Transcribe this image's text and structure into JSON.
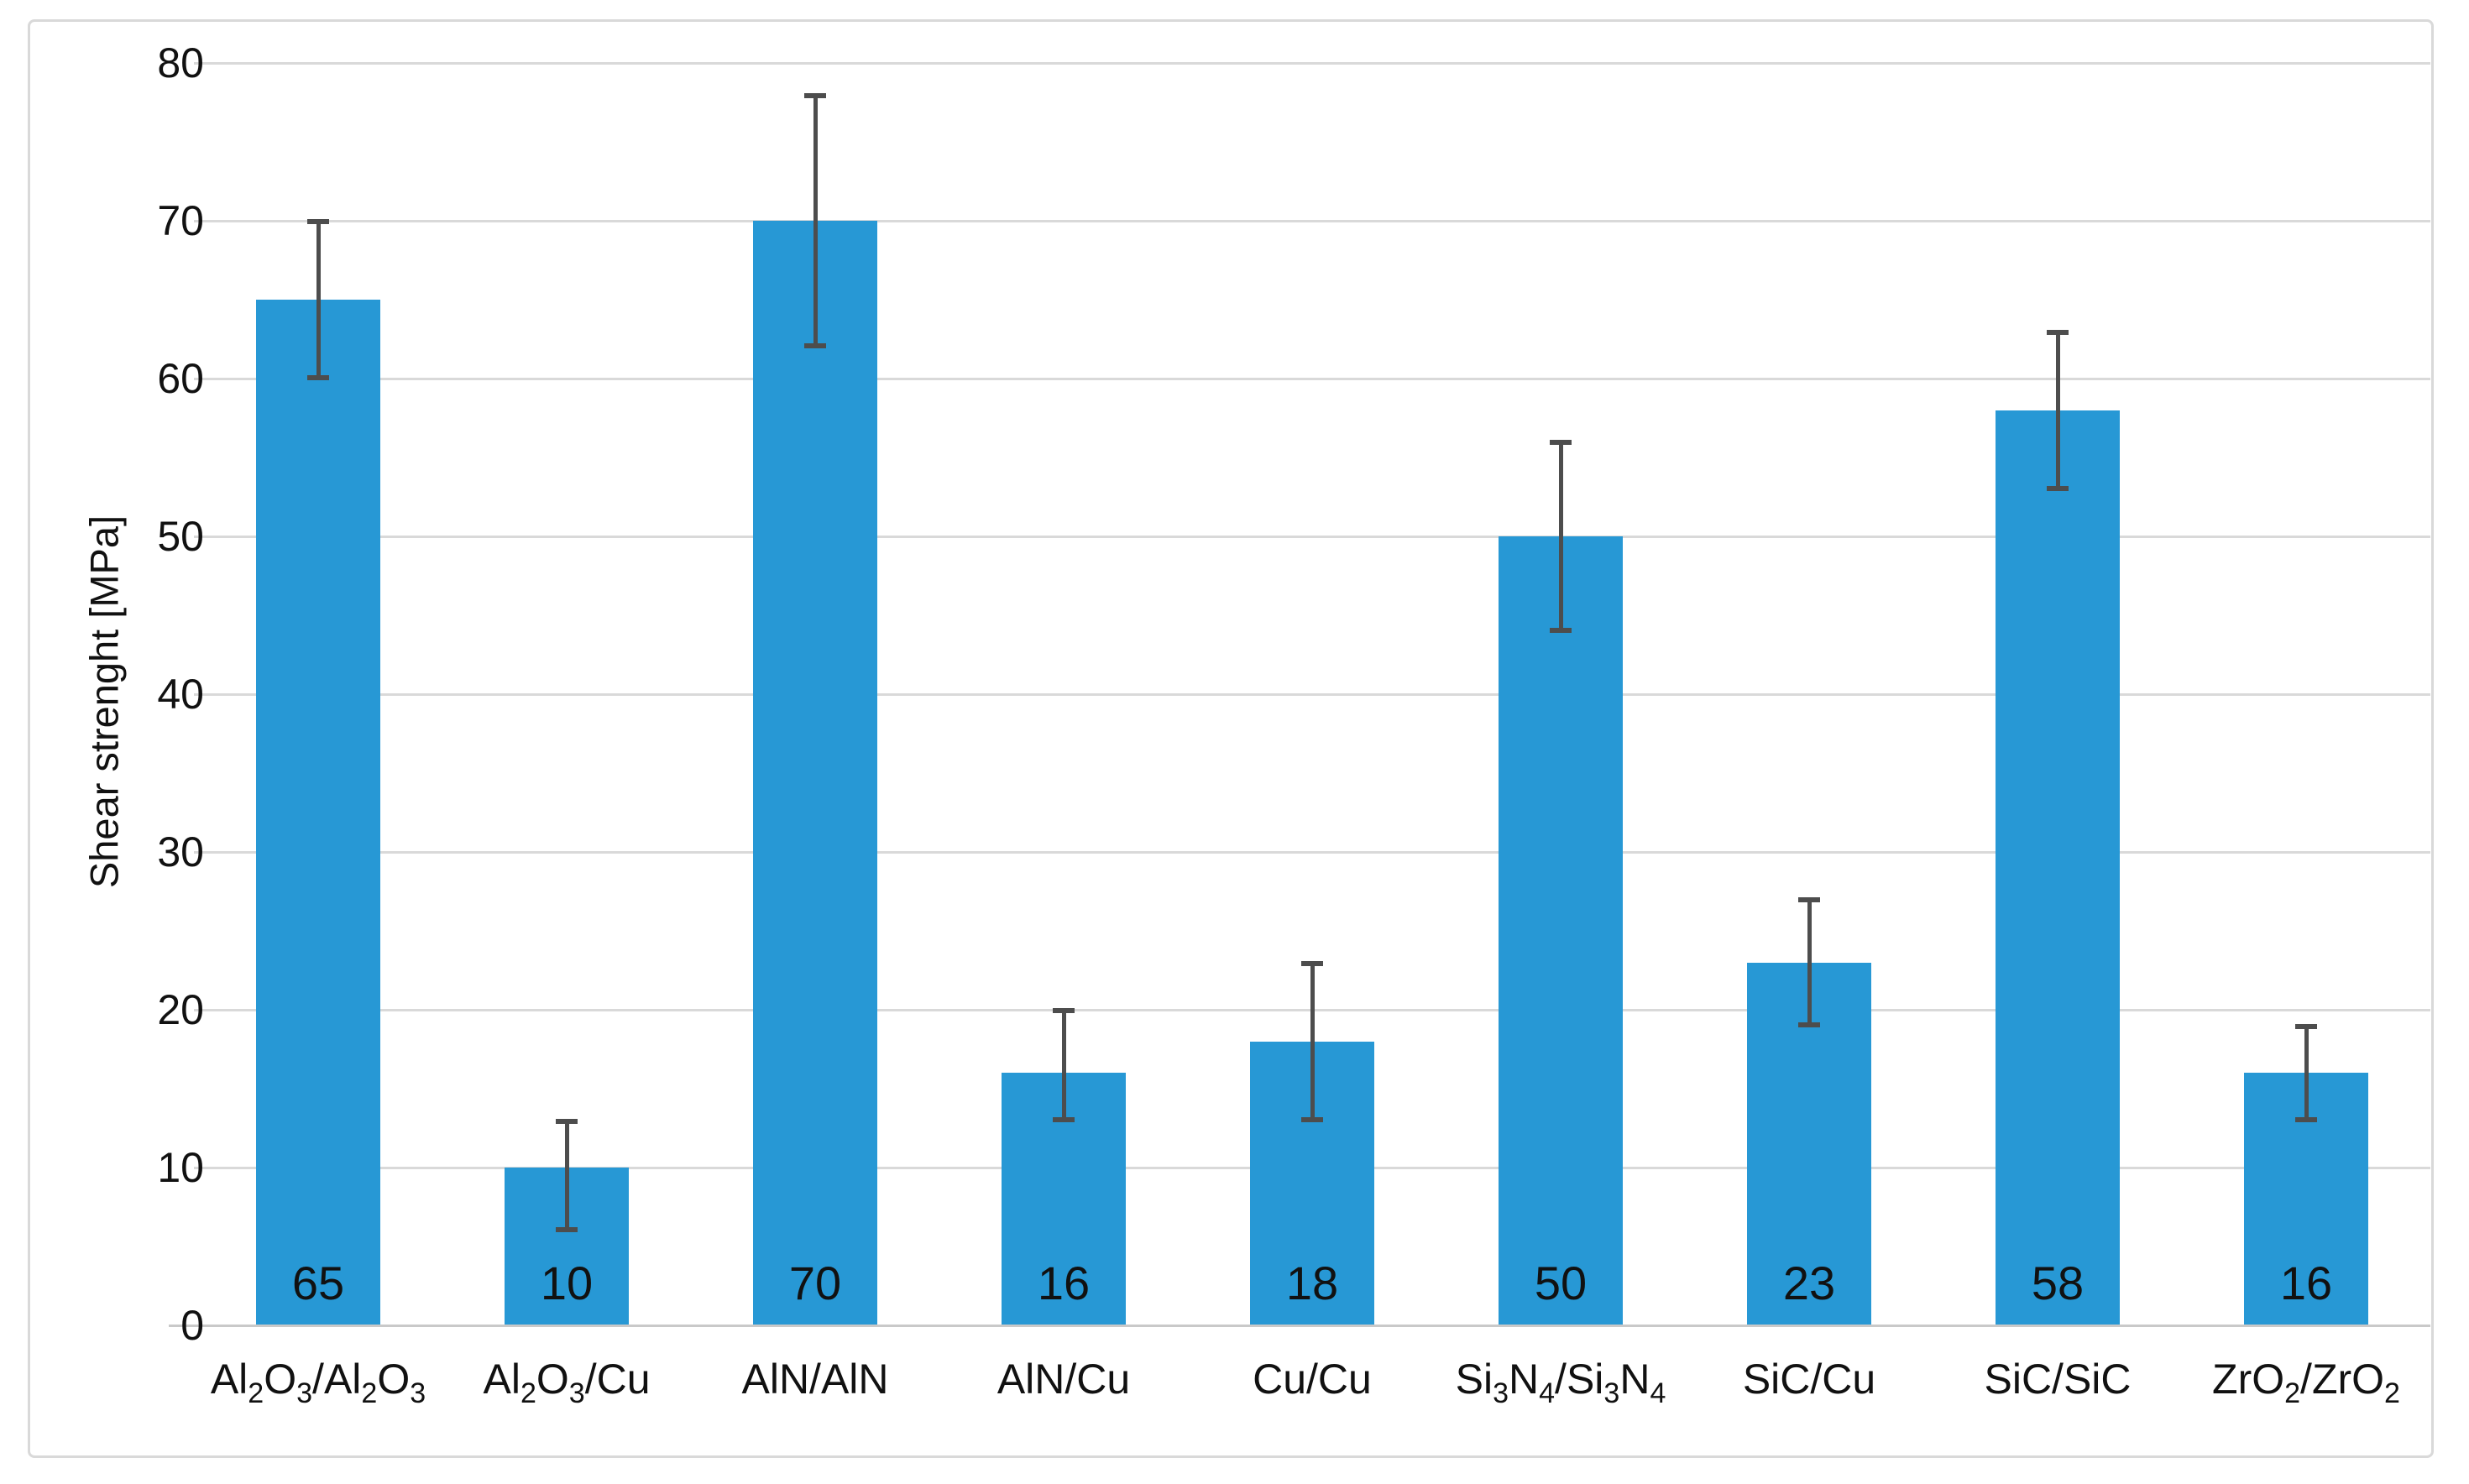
{
  "figure": {
    "background": "#FFFFFF",
    "border_color": "#D9D9D9"
  },
  "chart_data": {
    "type": "bar",
    "title": "",
    "xlabel": "",
    "ylabel": "Shear strenght [MPa]",
    "ylim": [
      0,
      80
    ],
    "yticks": [
      0,
      10,
      20,
      30,
      40,
      50,
      60,
      70,
      80
    ],
    "grid": true,
    "legend": false,
    "categories": [
      "Al2O3/Al2O3",
      "Al2O3/Cu",
      "AlN/AlN",
      "AlN/Cu",
      "Cu/Cu",
      "Si3N4/Si3N4",
      "SiC/Cu",
      "SiC/SiC",
      "ZrO2/ZrO2"
    ],
    "categories_display": [
      "Al₂O₃/Al₂O₃",
      "Al₂O₃/Cu",
      "AlN/AlN",
      "AlN/Cu",
      "Cu/Cu",
      "Si₃N₄/Si₃N₄",
      "SiC/Cu",
      "SiC/SiC",
      "ZrO₂/ZrO₂"
    ],
    "series": [
      {
        "name": "Shear strength",
        "values": [
          65,
          10,
          70,
          16,
          18,
          50,
          23,
          58,
          16
        ]
      }
    ],
    "data_labels": [
      "65",
      "10",
      "70",
      "16",
      "18",
      "50",
      "23",
      "58",
      "16"
    ],
    "error_plus": [
      5,
      3,
      8,
      4,
      5,
      6,
      4,
      5,
      3
    ],
    "error_minus": [
      5,
      4,
      8,
      3,
      5,
      6,
      4,
      5,
      3
    ],
    "colors": {
      "bar": "#2798D5",
      "error_bar": "#4D4D4D",
      "gridline": "#D9D9D9",
      "axis_line": "#C9C9C9",
      "text": "#111111"
    }
  }
}
